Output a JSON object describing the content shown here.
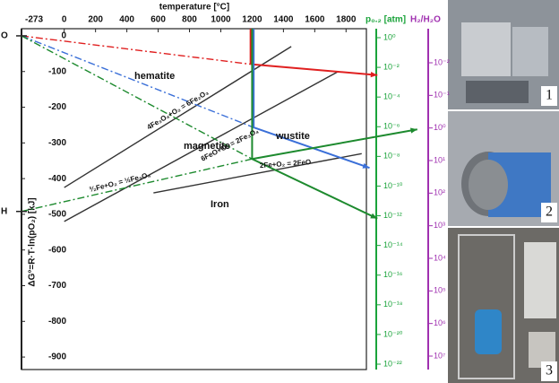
{
  "chart_data": {
    "type": "line",
    "x_label": "temperature [°C]",
    "y_label": "ΔG°=R·T·ln(pO₂) [kJ]",
    "xlim": [
      -273,
      1930
    ],
    "ylim": [
      -935,
      20
    ],
    "xticks": [
      -273,
      0,
      200,
      400,
      600,
      800,
      1000,
      1200,
      1400,
      1600,
      1800
    ],
    "yticks": [
      0,
      -100,
      -200,
      -300,
      -400,
      -500,
      -600,
      -700,
      -800,
      -900
    ],
    "series": [
      {
        "color": "#333333",
        "style": "solid",
        "x": [
          0,
          1450
        ],
        "values": [
          -425,
          -30
        ]
      },
      {
        "color": "#333333",
        "style": "solid",
        "x": [
          0,
          1750
        ],
        "values": [
          -520,
          -100
        ]
      },
      {
        "color": "#333333",
        "style": "solid",
        "x": [
          570,
          1900
        ],
        "values": [
          -440,
          -330
        ]
      },
      {
        "color": "#e02020",
        "style": "dashdot",
        "x": [
          -273,
          1200
        ],
        "values": [
          0,
          -80
        ]
      },
      {
        "color": "#e02020",
        "style": "solid",
        "x": [
          1200,
          2000
        ],
        "values": [
          -80,
          -110
        ]
      },
      {
        "color": "#3a6fd8",
        "style": "dashdot",
        "x": [
          -273,
          1200
        ],
        "values": [
          0,
          -255
        ]
      },
      {
        "color": "#3a6fd8",
        "style": "solid",
        "x": [
          1200,
          1950
        ],
        "values": [
          -255,
          -370
        ]
      },
      {
        "color": "#1d8a2e",
        "style": "dashdot",
        "x": [
          -273,
          1200
        ],
        "values": [
          0,
          -345
        ]
      },
      {
        "color": "#1d8a2e",
        "style": "solid",
        "x": [
          1200,
          2000
        ],
        "values": [
          -345,
          -512
        ]
      },
      {
        "color": "#1d8a2e",
        "style": "solid",
        "x": [
          1200,
          2255
        ],
        "values": [
          -345,
          -262
        ]
      },
      {
        "color": "#1d8a2e",
        "style": "dashdot",
        "x": [
          -273,
          1200
        ],
        "values": [
          -492,
          -345
        ]
      },
      {
        "color": "#e02020",
        "style": "solid",
        "x": [
          1190,
          1190
        ],
        "values": [
          20,
          -80
        ]
      },
      {
        "color": "#3a6fd8",
        "style": "solid",
        "x": [
          1210,
          1210
        ],
        "values": [
          20,
          -255
        ]
      },
      {
        "color": "#1d8a2e",
        "style": "solid",
        "x": [
          1200,
          1200
        ],
        "values": [
          20,
          -345
        ]
      }
    ],
    "annotations": [
      "hematite",
      "magnetite",
      "wustite",
      "Iron",
      "4Fe₃O₄+O₂ = 6Fe₂O₃",
      "6FeO+O₂ = 2Fe₃O₄",
      "2Fe+O₂ = 2FeO",
      "³⁄₂Fe+O₂ = ½Fe₃O₄"
    ],
    "left_markers": [
      "O",
      "H"
    ],
    "po2_axis": {
      "title": "p₀.₂ [atm]",
      "labels": [
        "10⁰",
        "10⁻²",
        "10⁻⁴",
        "10⁻⁶",
        "10⁻⁸",
        "10⁻¹⁰",
        "10⁻¹²",
        "10⁻¹⁴",
        "10⁻¹⁶",
        "10⁻¹⁸",
        "10⁻²⁰",
        "10⁻²²"
      ]
    },
    "h2_axis": {
      "title": "H₂/H₂O",
      "labels": [
        "10⁻²",
        "10⁻¹",
        "10⁰",
        "10¹",
        "10²",
        "10³",
        "10⁴",
        "10⁵",
        "10⁶",
        "10⁷"
      ]
    },
    "photo_labels": [
      "1",
      "2",
      "3"
    ]
  }
}
